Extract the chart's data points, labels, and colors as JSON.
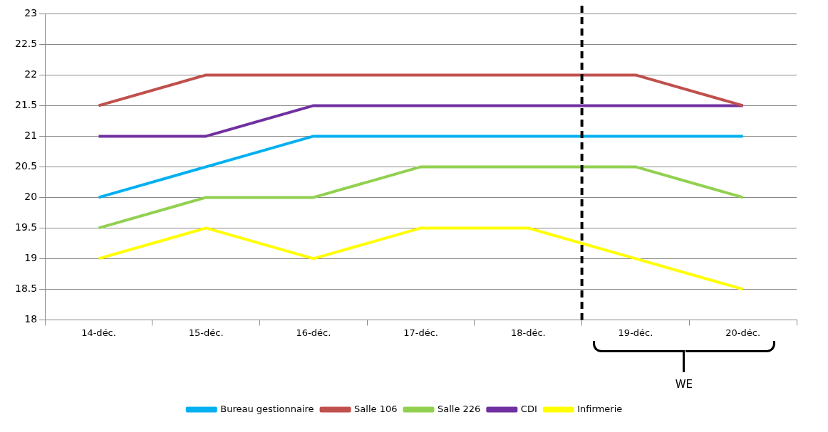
{
  "chart_data": {
    "type": "line",
    "categories": [
      "14-déc.",
      "15-déc.",
      "16-déc.",
      "17-déc.",
      "18-déc.",
      "19-déc.",
      "20-déc."
    ],
    "series": [
      {
        "name": "Bureau gestionnaire",
        "color": "#00b0f0",
        "values": [
          20,
          20.5,
          21,
          21,
          21,
          21,
          21
        ]
      },
      {
        "name": "Salle 106",
        "color": "#c0504d",
        "values": [
          21.5,
          22,
          22,
          22,
          22,
          22,
          21.5
        ]
      },
      {
        "name": "Salle 226",
        "color": "#92d050",
        "values": [
          19.5,
          20,
          20,
          20.5,
          20.5,
          20.5,
          20
        ]
      },
      {
        "name": "CDI",
        "color": "#7030a0",
        "values": [
          21,
          21,
          21.5,
          21.5,
          21.5,
          21.5,
          21.5
        ]
      },
      {
        "name": "Infirmerie",
        "color": "#ffff00",
        "values": [
          19,
          19.5,
          19,
          19.5,
          19.5,
          19,
          18.5
        ]
      }
    ],
    "ylim": [
      18,
      23
    ],
    "yticks": [
      18,
      18.5,
      19,
      19.5,
      20,
      20.5,
      21,
      21.5,
      22,
      22.5,
      23
    ],
    "grid": "y",
    "legend": "bottom",
    "marker": "none",
    "line_style": "solid",
    "ref_lines": [
      {
        "axis": "x",
        "value": "19-déc.",
        "color": "#000000",
        "line_style": "dashed"
      }
    ],
    "annotations": [
      "WE"
    ]
  }
}
